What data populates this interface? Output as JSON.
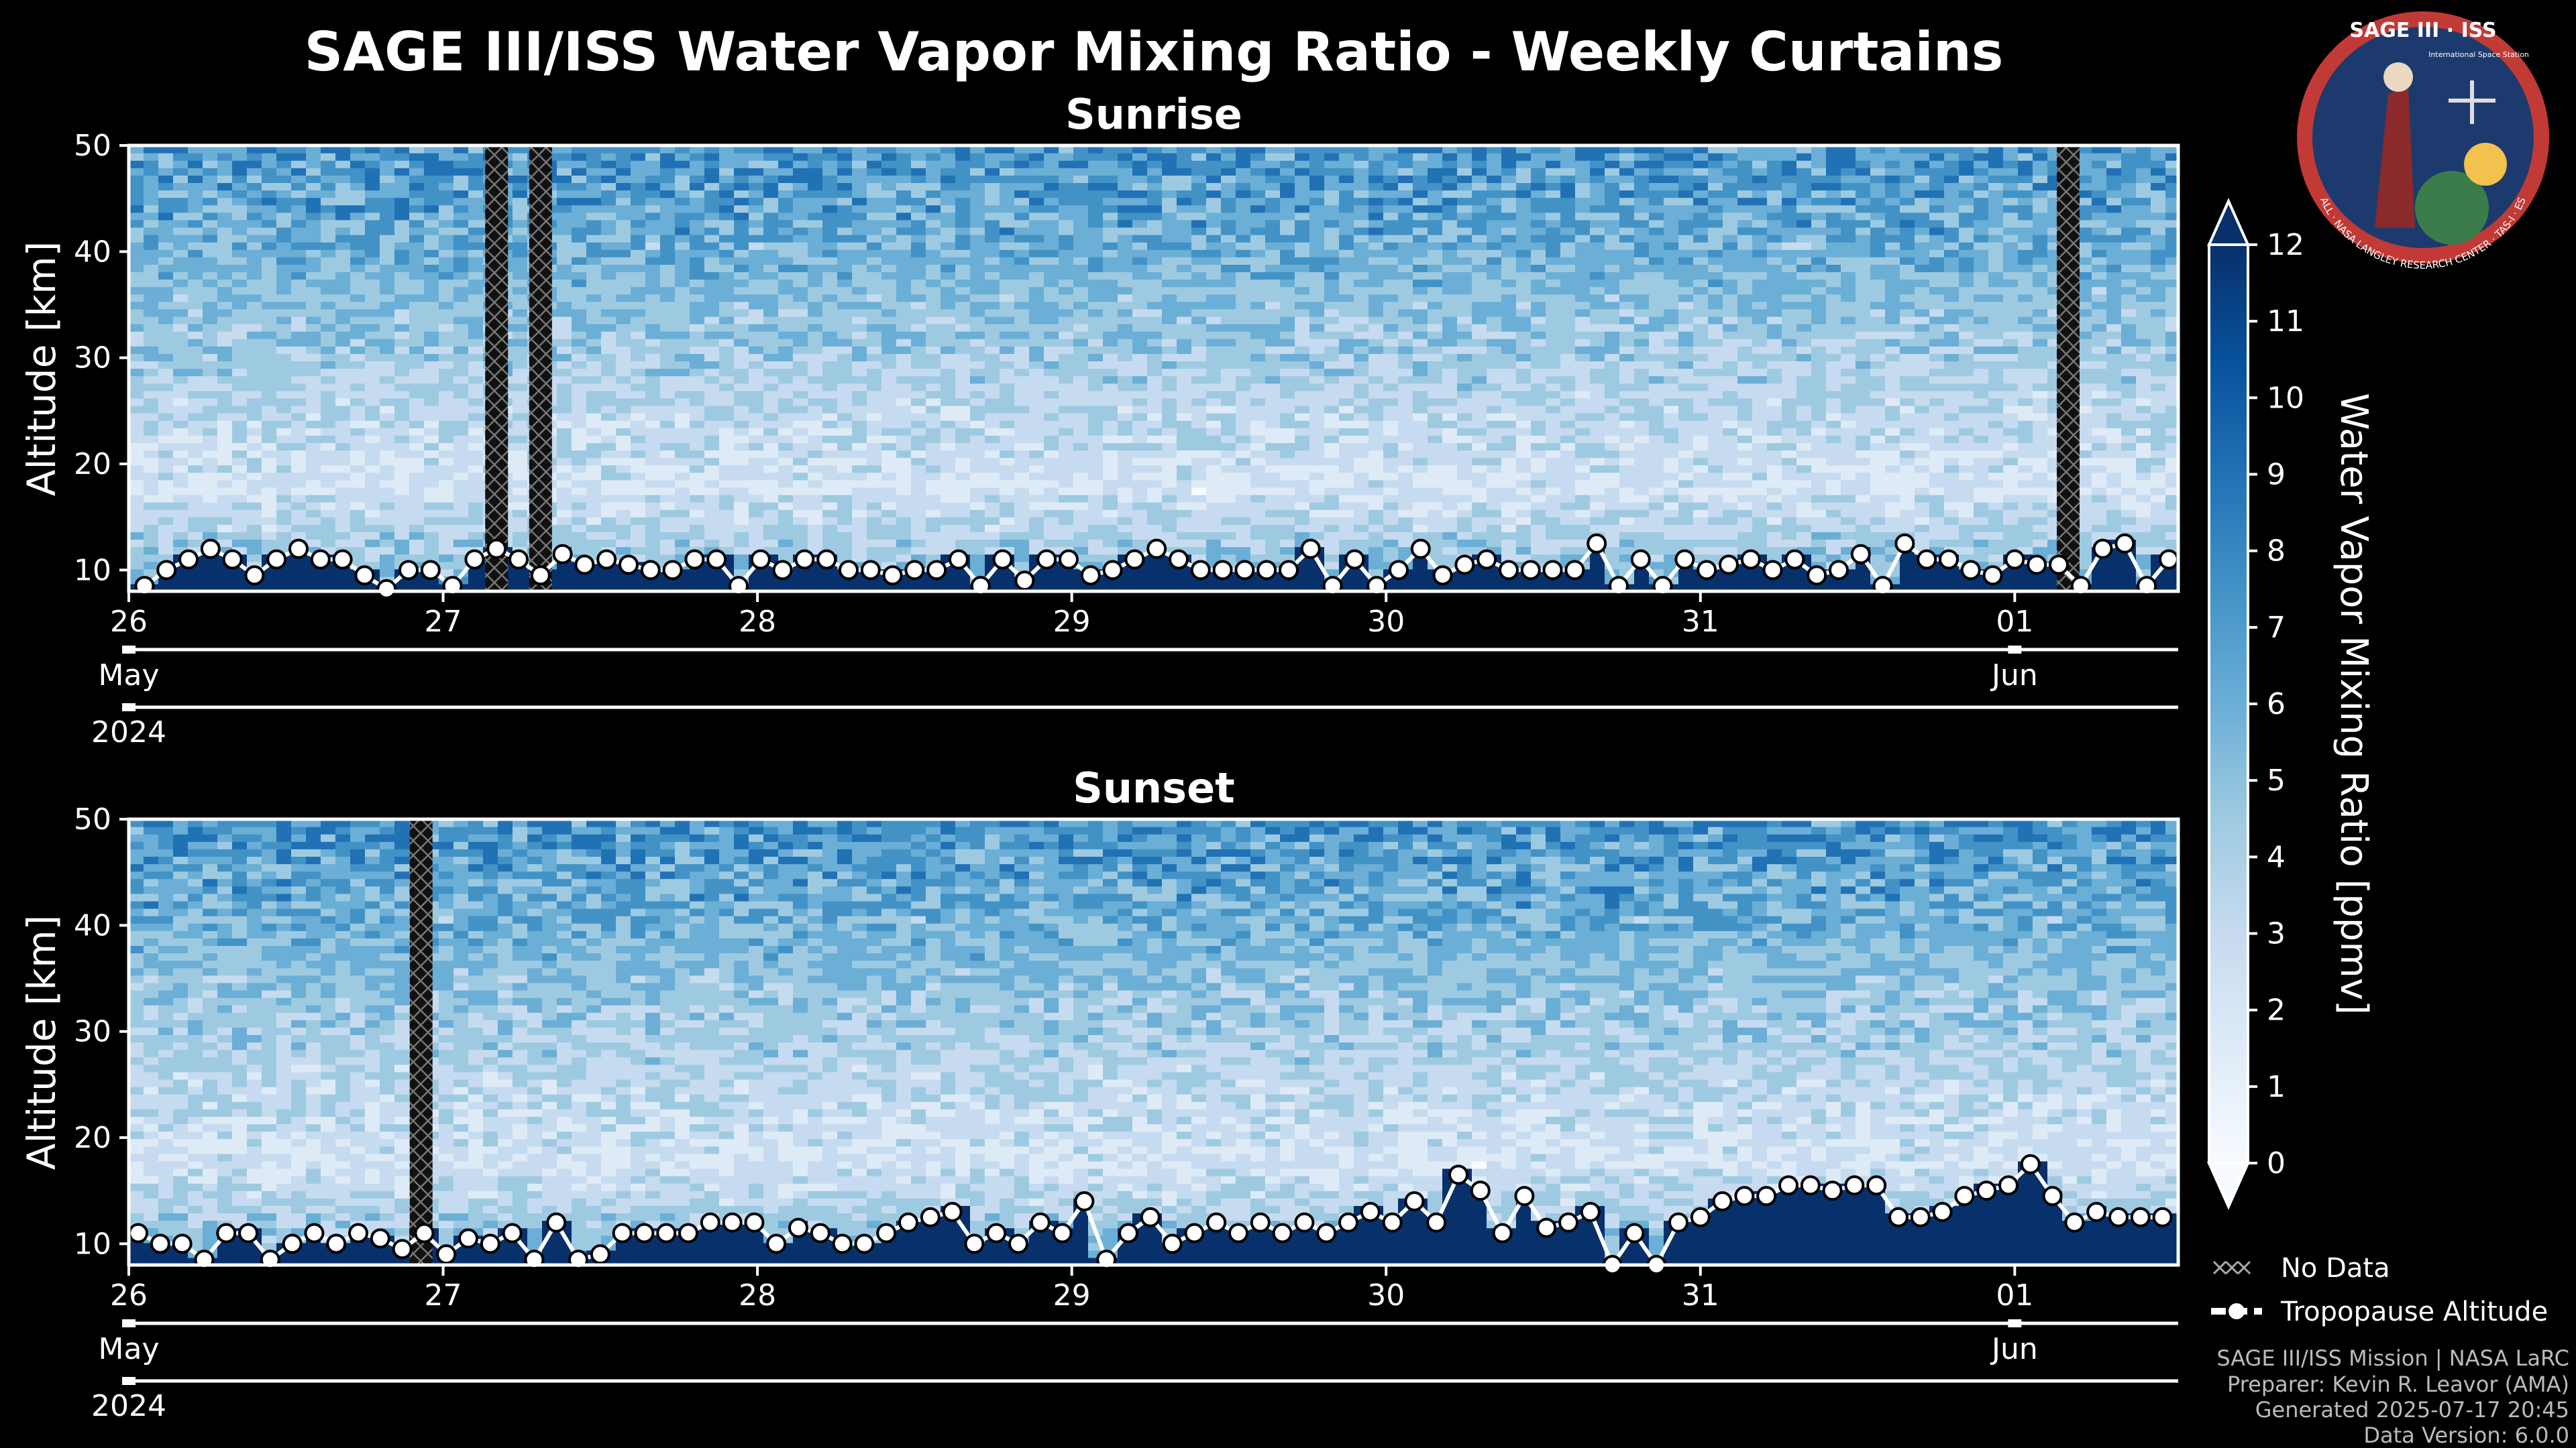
{
  "header": {
    "title": "SAGE III/ISS Water Vapor Mixing Ratio - Weekly Curtains"
  },
  "logo": {
    "text": "SAGE III · ISS",
    "ring_text": "BALL · NASA LANGLEY RESEARCH CENTER · TAS-I · ESA",
    "small_text": "International Space Station"
  },
  "chart_data": [
    {
      "type": "heatmap",
      "title": "Sunrise",
      "xlabel": "",
      "ylabel": "Altitude [km]",
      "ylim": [
        8,
        50
      ],
      "yticks": [
        "10",
        "20",
        "30",
        "40",
        "50"
      ],
      "xlim_days": [
        0,
        6.52
      ],
      "x_ticks": [
        {
          "day": 0,
          "label": "26"
        },
        {
          "day": 1,
          "label": "27"
        },
        {
          "day": 2,
          "label": "28"
        },
        {
          "day": 3,
          "label": "29"
        },
        {
          "day": 4,
          "label": "30"
        },
        {
          "day": 5,
          "label": "31"
        },
        {
          "day": 6,
          "label": "01"
        }
      ],
      "month_labels": [
        {
          "day": 0,
          "label": "May"
        },
        {
          "day": 6,
          "label": "Jun"
        }
      ],
      "year_label": "2024",
      "no_data_columns_days": [
        1.17,
        1.31,
        6.17
      ],
      "tropopause_series": {
        "name": "Tropopause Altitude",
        "x": [
          0.05,
          0.12,
          0.19,
          0.26,
          0.33,
          0.4,
          0.47,
          0.54,
          0.61,
          0.68,
          0.75,
          0.82,
          0.89,
          0.96,
          1.03,
          1.1,
          1.17,
          1.24,
          1.31,
          1.38,
          1.45,
          1.52,
          1.59,
          1.66,
          1.73,
          1.8,
          1.87,
          1.94,
          2.01,
          2.08,
          2.15,
          2.22,
          2.29,
          2.36,
          2.43,
          2.5,
          2.57,
          2.64,
          2.71,
          2.78,
          2.85,
          2.92,
          2.99,
          3.06,
          3.13,
          3.2,
          3.27,
          3.34,
          3.41,
          3.48,
          3.55,
          3.62,
          3.69,
          3.76,
          3.83,
          3.9,
          3.97,
          4.04,
          4.11,
          4.18,
          4.25,
          4.32,
          4.39,
          4.46,
          4.53,
          4.6,
          4.67,
          4.74,
          4.81,
          4.88,
          4.95,
          5.02,
          5.09,
          5.16,
          5.23,
          5.3,
          5.37,
          5.44,
          5.51,
          5.58,
          5.65,
          5.72,
          5.79,
          5.86,
          5.93,
          6.0,
          6.07,
          6.14,
          6.21,
          6.28,
          6.35,
          6.42,
          6.49
        ],
        "y": [
          8.5,
          10,
          11,
          12,
          11,
          9.5,
          11,
          12,
          11,
          11,
          9.5,
          8.2,
          10,
          10,
          8.5,
          11,
          12,
          11,
          9.5,
          11.5,
          10.5,
          11,
          10.5,
          10,
          10,
          11,
          11,
          8.5,
          11,
          10,
          11,
          11,
          10,
          10,
          9.5,
          10,
          10,
          11,
          8.5,
          11,
          9,
          11,
          11,
          9.5,
          10,
          11,
          12,
          11,
          10,
          10,
          10,
          10,
          10,
          12,
          8.5,
          11,
          8.5,
          10,
          12,
          9.5,
          10.5,
          11,
          10,
          10,
          10,
          10,
          12.5,
          8.5,
          11,
          8.5,
          11,
          10,
          10.5,
          11,
          10,
          11,
          9.5,
          10,
          11.5,
          8.5,
          12.5,
          11,
          11,
          10,
          9.5,
          11,
          10.5,
          10.5,
          8.5,
          12,
          12.5,
          8.5,
          11
        ]
      }
    },
    {
      "type": "heatmap",
      "title": "Sunset",
      "xlabel": "",
      "ylabel": "Altitude [km]",
      "ylim": [
        8,
        50
      ],
      "yticks": [
        "10",
        "20",
        "30",
        "40",
        "50"
      ],
      "xlim_days": [
        0,
        6.52
      ],
      "x_ticks": [
        {
          "day": 0,
          "label": "26"
        },
        {
          "day": 1,
          "label": "27"
        },
        {
          "day": 2,
          "label": "28"
        },
        {
          "day": 3,
          "label": "29"
        },
        {
          "day": 4,
          "label": "30"
        },
        {
          "day": 5,
          "label": "31"
        },
        {
          "day": 6,
          "label": "01"
        }
      ],
      "month_labels": [
        {
          "day": 0,
          "label": "May"
        },
        {
          "day": 6,
          "label": "Jun"
        }
      ],
      "year_label": "2024",
      "no_data_columns_days": [
        0.93
      ],
      "tropopause_series": {
        "name": "Tropopause Altitude",
        "x": [
          0.03,
          0.1,
          0.17,
          0.24,
          0.31,
          0.38,
          0.45,
          0.52,
          0.59,
          0.66,
          0.73,
          0.8,
          0.87,
          0.94,
          1.01,
          1.08,
          1.15,
          1.22,
          1.29,
          1.36,
          1.43,
          1.5,
          1.57,
          1.64,
          1.71,
          1.78,
          1.85,
          1.92,
          1.99,
          2.06,
          2.13,
          2.2,
          2.27,
          2.34,
          2.41,
          2.48,
          2.55,
          2.62,
          2.69,
          2.76,
          2.83,
          2.9,
          2.97,
          3.04,
          3.11,
          3.18,
          3.25,
          3.32,
          3.39,
          3.46,
          3.53,
          3.6,
          3.67,
          3.74,
          3.81,
          3.88,
          3.95,
          4.02,
          4.09,
          4.16,
          4.23,
          4.3,
          4.37,
          4.44,
          4.51,
          4.58,
          4.65,
          4.72,
          4.79,
          4.86,
          4.93,
          5.0,
          5.07,
          5.14,
          5.21,
          5.28,
          5.35,
          5.42,
          5.49,
          5.56,
          5.63,
          5.7,
          5.77,
          5.84,
          5.91,
          5.98,
          6.05,
          6.12,
          6.19,
          6.26,
          6.33,
          6.4,
          6.47
        ],
        "y": [
          11,
          10,
          10,
          8.5,
          11,
          11,
          8.5,
          10,
          11,
          10,
          11,
          10.5,
          9.5,
          11,
          9,
          10.5,
          10,
          11,
          8.5,
          12,
          8.5,
          9,
          11,
          11,
          11,
          11,
          12,
          12,
          12,
          10,
          11.5,
          11,
          10,
          10,
          11,
          12,
          12.5,
          13,
          10,
          11,
          10,
          12,
          11,
          14,
          8.5,
          11,
          12.5,
          10,
          11,
          12,
          11,
          12,
          11,
          12,
          11,
          12,
          13,
          12,
          14,
          12,
          16.5,
          15,
          11,
          14.5,
          11.5,
          12,
          13,
          8,
          11,
          8,
          12,
          12.5,
          14,
          14.5,
          14.5,
          15.5,
          15.5,
          15,
          15.5,
          15.5,
          12.5,
          12.5,
          13,
          14.5,
          15,
          15.5,
          17.5,
          14.5,
          12,
          13,
          12.5,
          12.5,
          12.5
        ]
      }
    }
  ],
  "colorbar": {
    "label": "Water Vapor Mixing Ratio [ppmv]",
    "ticks": [
      "0",
      "1",
      "2",
      "3",
      "4",
      "5",
      "6",
      "7",
      "8",
      "9",
      "10",
      "11",
      "12"
    ],
    "min": 0,
    "max": 12,
    "colors": [
      "#f7fbff",
      "#deebf7",
      "#c6dbef",
      "#9ecae1",
      "#6baed6",
      "#4292c6",
      "#2171b5",
      "#08519c",
      "#08306b"
    ]
  },
  "legend": {
    "no_data": "No Data",
    "tropopause": "Tropopause Altitude"
  },
  "credits": {
    "line1": "SAGE III/ISS Mission | NASA LaRC",
    "line2": "Preparer: Kevin R. Leavor (AMA)",
    "line3": "Generated 2025-07-17 20:45",
    "line4": "Data Version: 6.0.0"
  }
}
